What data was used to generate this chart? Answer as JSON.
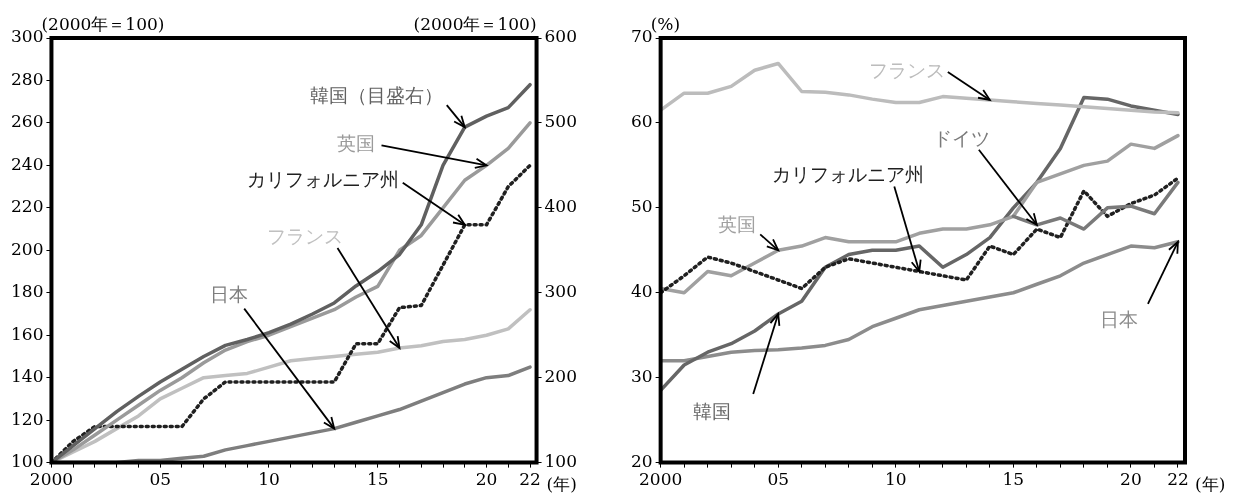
{
  "chart_data": [
    {
      "type": "line",
      "ylabel": "(2000年＝100)",
      "y2label": "(2000年＝100)",
      "xlabel": "(年)",
      "x": [
        2000,
        2001,
        2002,
        2003,
        2004,
        2005,
        2006,
        2007,
        2008,
        2009,
        2010,
        2011,
        2012,
        2013,
        2014,
        2015,
        2016,
        2017,
        2018,
        2019,
        2020,
        2021,
        2022
      ],
      "xlim": [
        2000,
        2022.3
      ],
      "xticks": [
        {
          "value": 2000,
          "label": "2000"
        },
        {
          "value": 2001,
          "label": null
        },
        {
          "value": 2002,
          "label": null
        },
        {
          "value": 2003,
          "label": null
        },
        {
          "value": 2004,
          "label": null
        },
        {
          "value": 2005,
          "label": "05"
        },
        {
          "value": 2006,
          "label": null
        },
        {
          "value": 2007,
          "label": null
        },
        {
          "value": 2008,
          "label": null
        },
        {
          "value": 2009,
          "label": null
        },
        {
          "value": 2010,
          "label": "10"
        },
        {
          "value": 2011,
          "label": null
        },
        {
          "value": 2012,
          "label": null
        },
        {
          "value": 2013,
          "label": null
        },
        {
          "value": 2014,
          "label": null
        },
        {
          "value": 2015,
          "label": "15"
        },
        {
          "value": 2016,
          "label": null
        },
        {
          "value": 2017,
          "label": null
        },
        {
          "value": 2018,
          "label": null
        },
        {
          "value": 2019,
          "label": null
        },
        {
          "value": 2020,
          "label": "20"
        },
        {
          "value": 2021,
          "label": null
        },
        {
          "value": 2022,
          "label": "22"
        }
      ],
      "ylim": [
        100,
        300
      ],
      "yticks": [
        100,
        120,
        140,
        160,
        180,
        200,
        220,
        240,
        260,
        280,
        300
      ],
      "y2lim": [
        100,
        600
      ],
      "y2ticks": [
        100,
        200,
        300,
        400,
        500,
        600
      ],
      "legend": false,
      "marker": "none",
      "series": [
        {
          "name": "韓国（目盛右）",
          "color": "#606060",
          "axis": "y2",
          "values": [
            100,
            120,
            140,
            160,
            178,
            195,
            210,
            225,
            238,
            245,
            253,
            263,
            275,
            288,
            308,
            325,
            345,
            380,
            450,
            495,
            508,
            518,
            545
          ]
        },
        {
          "name": "英国",
          "color": "#9a9a9a",
          "values": [
            100,
            106,
            113,
            120,
            127,
            134,
            140,
            147,
            153,
            157,
            160,
            164,
            168,
            172,
            178,
            183,
            200,
            207,
            220,
            233,
            240,
            248,
            260
          ]
        },
        {
          "name": "カリフォルニア州",
          "color": "#202020",
          "line_style": "dotted",
          "values": [
            100,
            110,
            117,
            117,
            117,
            117,
            117,
            130,
            138,
            138,
            138,
            138,
            138,
            138,
            156,
            156,
            173,
            174,
            193,
            212,
            212,
            230,
            240
          ]
        },
        {
          "name": "フランス",
          "color": "#c0c0c0",
          "values": [
            100,
            105,
            110,
            116,
            122,
            130,
            135,
            140,
            141,
            142,
            145,
            148,
            149,
            150,
            151,
            152,
            154,
            155,
            157,
            158,
            160,
            163,
            172
          ]
        },
        {
          "name": "日本",
          "color": "#7e7e7e",
          "values": [
            100,
            100,
            100,
            100,
            101,
            101,
            102,
            103,
            106,
            108,
            110,
            112,
            114,
            116,
            119,
            122,
            125,
            129,
            133,
            137,
            140,
            141,
            145
          ]
        }
      ]
    },
    {
      "type": "line",
      "ylabel": "(%)",
      "xlabel": "(年)",
      "x": [
        2000,
        2001,
        2002,
        2003,
        2004,
        2005,
        2006,
        2007,
        2008,
        2009,
        2010,
        2011,
        2012,
        2013,
        2014,
        2015,
        2016,
        2017,
        2018,
        2019,
        2020,
        2021,
        2022
      ],
      "xlim": [
        2000,
        2022.3
      ],
      "xticks": [
        {
          "value": 2000,
          "label": "2000"
        },
        {
          "value": 2001,
          "label": null
        },
        {
          "value": 2002,
          "label": null
        },
        {
          "value": 2003,
          "label": null
        },
        {
          "value": 2004,
          "label": null
        },
        {
          "value": 2005,
          "label": "05"
        },
        {
          "value": 2006,
          "label": null
        },
        {
          "value": 2007,
          "label": null
        },
        {
          "value": 2008,
          "label": null
        },
        {
          "value": 2009,
          "label": null
        },
        {
          "value": 2010,
          "label": "10"
        },
        {
          "value": 2011,
          "label": null
        },
        {
          "value": 2012,
          "label": null
        },
        {
          "value": 2013,
          "label": null
        },
        {
          "value": 2014,
          "label": null
        },
        {
          "value": 2015,
          "label": "15"
        },
        {
          "value": 2016,
          "label": null
        },
        {
          "value": 2017,
          "label": null
        },
        {
          "value": 2018,
          "label": null
        },
        {
          "value": 2019,
          "label": null
        },
        {
          "value": 2020,
          "label": "20"
        },
        {
          "value": 2021,
          "label": null
        },
        {
          "value": 2022,
          "label": "22"
        }
      ],
      "ylim": [
        20,
        70
      ],
      "yticks": [
        20,
        30,
        40,
        50,
        60,
        70
      ],
      "legend": false,
      "marker": "none",
      "series": [
        {
          "name": "フランス",
          "color": "#bcbcbc",
          "values": [
            61.5,
            63.5,
            63.5,
            64.3,
            66.2,
            67.0,
            63.7,
            63.6,
            63.3,
            62.8,
            62.4,
            62.4,
            63.1,
            62.9,
            62.7,
            62.5,
            62.3,
            62.1,
            61.9,
            61.7,
            61.5,
            61.3,
            61.2
          ]
        },
        {
          "name": "ドイツ",
          "color": "#7a7a7a",
          "values": [
            null,
            null,
            null,
            null,
            null,
            null,
            null,
            null,
            null,
            null,
            null,
            null,
            null,
            null,
            null,
            49,
            48,
            48.8,
            47.5,
            50,
            50.2,
            49.3,
            53
          ]
        },
        {
          "name": "カリフォルニア州",
          "color": "#202020",
          "line_style": "dotted",
          "values": [
            40,
            42,
            44.2,
            43.5,
            42.5,
            41.5,
            40.5,
            43,
            44,
            43.5,
            43,
            42.5,
            42,
            41.5,
            45.5,
            44.5,
            47.5,
            46.5,
            52,
            49,
            50.5,
            51.5,
            53.5
          ]
        },
        {
          "name": "英国",
          "color": "#a0a0a0",
          "values": [
            40.5,
            40,
            42.5,
            42,
            43.5,
            45,
            45.5,
            46.5,
            46,
            46,
            46,
            47,
            47.5,
            47.5,
            48,
            49,
            53,
            54,
            55,
            55.5,
            57.5,
            57,
            58.5
          ]
        },
        {
          "name": "韓国",
          "color": "#666666",
          "values": [
            28.5,
            31.5,
            33,
            34,
            35.5,
            37.5,
            39,
            43,
            44.5,
            45,
            45,
            45.5,
            43,
            44.5,
            46.5,
            50,
            53,
            57,
            63,
            62.8,
            62,
            61.5,
            61
          ]
        },
        {
          "name": "日本",
          "color": "#8c8c8c",
          "values": [
            32,
            32,
            32.5,
            33,
            33.2,
            33.3,
            33.5,
            33.8,
            34.5,
            36,
            37,
            38,
            38.5,
            39,
            39.5,
            40,
            41,
            42,
            43.5,
            44.5,
            45.5,
            45.3,
            46
          ]
        }
      ]
    }
  ]
}
